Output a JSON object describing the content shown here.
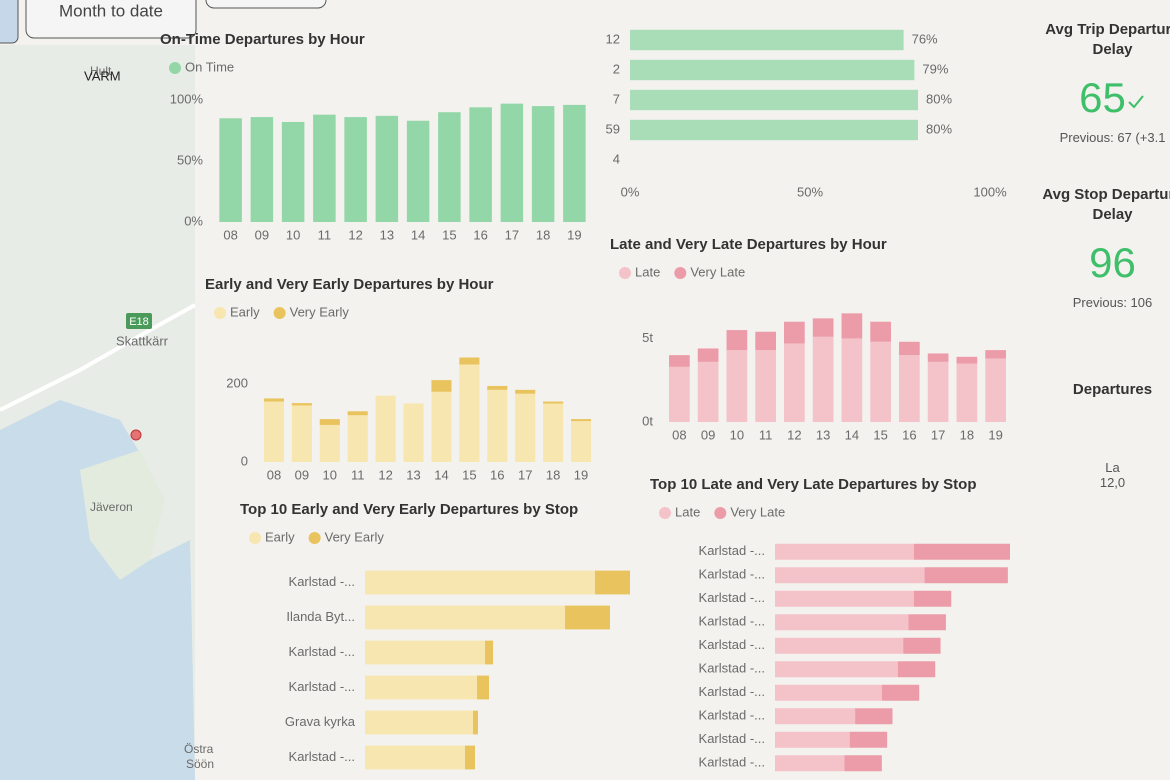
{
  "filters": {
    "period": "Month to date"
  },
  "map": {
    "places": [
      "Hult",
      "VARM",
      "E18",
      "Skattkärr",
      "Jäveron",
      "Östra",
      "Söön"
    ]
  },
  "kpis": [
    {
      "title": "Avg Trip Departure Delay",
      "value": "65",
      "previous": "Previous: 67 (+3.1"
    },
    {
      "title": "Avg Stop Departure Delay",
      "value": "96",
      "previous": "Previous: 106"
    },
    {
      "title": "Departures",
      "label": "La",
      "value": "12,0"
    }
  ],
  "chart_data": [
    {
      "type": "bar",
      "title": "On-Time Departures by Hour",
      "categories": [
        "08",
        "09",
        "10",
        "11",
        "12",
        "13",
        "14",
        "15",
        "16",
        "17",
        "18",
        "19"
      ],
      "series": [
        {
          "name": "On Time",
          "color": "#93d6a8",
          "values": [
            85,
            86,
            82,
            88,
            86,
            87,
            83,
            90,
            94,
            97,
            95,
            96
          ]
        }
      ],
      "ylim": [
        0,
        100
      ],
      "yticks": [
        {
          "value": 0,
          "label": "0%"
        },
        {
          "value": 50,
          "label": "50%"
        },
        {
          "value": 100,
          "label": "100%"
        }
      ]
    },
    {
      "type": "hbar",
      "categories": [
        "12",
        "2",
        "7",
        "59",
        "4"
      ],
      "series": [
        {
          "color": "#a8ddb8",
          "values": [
            76,
            79,
            80,
            80,
            null
          ],
          "value_labels": [
            "76%",
            "79%",
            "80%",
            "80%",
            null
          ]
        }
      ],
      "xlim": [
        0,
        100
      ],
      "xticks": [
        {
          "value": 0,
          "label": "0%"
        },
        {
          "value": 50,
          "label": "50%"
        },
        {
          "value": 100,
          "label": "100%"
        }
      ]
    },
    {
      "type": "bar",
      "title": "Early and Very Early Departures by Hour",
      "categories": [
        "08",
        "09",
        "10",
        "11",
        "12",
        "13",
        "14",
        "15",
        "16",
        "17",
        "18",
        "19"
      ],
      "series": [
        {
          "name": "Early",
          "color": "#f8e6b0",
          "values": [
            155,
            145,
            95,
            120,
            170,
            150,
            180,
            250,
            185,
            175,
            150,
            105
          ]
        },
        {
          "name": "Very Early",
          "color": "#e9c45e",
          "values": [
            8,
            6,
            15,
            10,
            0,
            0,
            30,
            18,
            10,
            10,
            5,
            5
          ]
        }
      ],
      "ylim": [
        0,
        300
      ],
      "yticks": [
        0,
        200
      ]
    },
    {
      "type": "bar",
      "title": "Late and Very Late Departures by Hour",
      "categories": [
        "08",
        "09",
        "10",
        "11",
        "12",
        "13",
        "14",
        "15",
        "16",
        "17",
        "18",
        "19"
      ],
      "series": [
        {
          "name": "Late",
          "color": "#f4c2c9",
          "values": [
            3.3,
            3.6,
            4.3,
            4.3,
            4.7,
            5.1,
            5.0,
            4.8,
            4.0,
            3.6,
            3.5,
            3.8
          ]
        },
        {
          "name": "Very Late",
          "color": "#ec9ba8",
          "values": [
            0.7,
            0.8,
            1.2,
            1.1,
            1.3,
            1.1,
            1.5,
            1.2,
            0.8,
            0.5,
            0.4,
            0.5
          ]
        }
      ],
      "ylim": [
        0,
        7
      ],
      "yticks": [
        {
          "value": 0,
          "label": "0t"
        },
        {
          "value": 5,
          "label": "5t"
        }
      ]
    },
    {
      "type": "hbar",
      "title": "Top 10 Early and Very Early Departures by Stop",
      "categories": [
        "Karlstad -...",
        "Ilanda Byt...",
        "Karlstad -...",
        "Karlstad -...",
        "Grava kyrka",
        "Karlstad -..."
      ],
      "series": [
        {
          "name": "Early",
          "color": "#f8e6b0",
          "values": [
            230,
            200,
            120,
            112,
            108,
            100
          ]
        },
        {
          "name": "Very Early",
          "color": "#e9c45e",
          "values": [
            35,
            45,
            8,
            12,
            5,
            10
          ]
        }
      ]
    },
    {
      "type": "hbar",
      "title": "Top 10 Late and Very Late Departures by Stop",
      "categories": [
        "Karlstad -...",
        "Karlstad -...",
        "Karlstad -...",
        "Karlstad -...",
        "Karlstad -...",
        "Karlstad -...",
        "Karlstad -...",
        "Karlstad -...",
        "Karlstad -...",
        "Karlstad -..."
      ],
      "series": [
        {
          "name": "Late",
          "color": "#f4c2c9",
          "values": [
            130,
            140,
            130,
            125,
            120,
            115,
            100,
            75,
            70,
            65
          ]
        },
        {
          "name": "Very Late",
          "color": "#ec9ba8",
          "values": [
            90,
            78,
            35,
            35,
            35,
            35,
            35,
            35,
            35,
            35
          ]
        }
      ]
    }
  ]
}
